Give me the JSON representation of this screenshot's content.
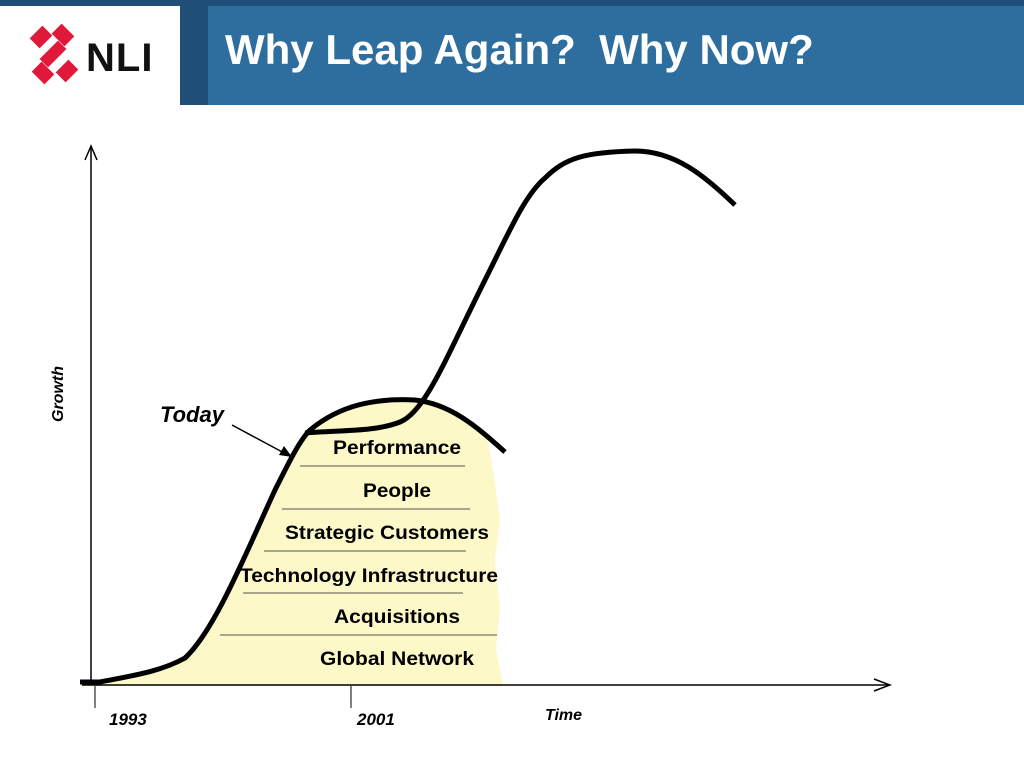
{
  "slide": {
    "title": "Why Leap Again?  Why Now?",
    "logo_text": "NLI"
  },
  "diagram": {
    "y_axis_label": "Growth",
    "x_axis_label": "Time",
    "x_tick_labels": [
      "1993",
      "2001"
    ],
    "callout_label": "Today",
    "layers": [
      "Performance",
      "People",
      "Strategic Customers",
      "Technology Infrastructure",
      "Acquisitions",
      "Global Network"
    ]
  },
  "colors": {
    "header": "#2e6e9e",
    "header_accent": "#1f4f78",
    "fill_area": "#fdf8c8",
    "logo_red": "#e0193a",
    "curve": "#000000"
  }
}
